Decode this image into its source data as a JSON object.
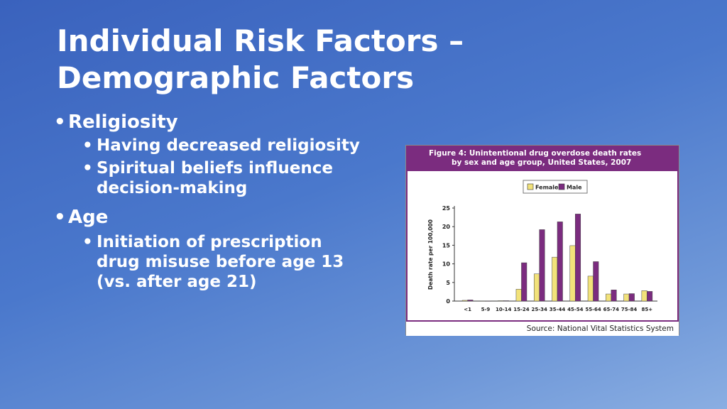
{
  "slide": {
    "title_line1": "Individual Risk Factors –",
    "title_line2": "Demographic Factors",
    "bullets": [
      {
        "label": "Religiosity",
        "sub": [
          "Having decreased religiosity",
          "Spiritual beliefs influence",
          "decision-making"
        ]
      },
      {
        "label": "Age",
        "sub": [
          "Initiation of prescription",
          "drug misuse before age 13",
          "(vs. after age 21)"
        ]
      }
    ]
  },
  "chart_data": {
    "type": "bar",
    "title_line1": "Figure 4: Unintentional drug overdose death rates",
    "title_line2": "by sex and age group, United States, 2007",
    "source": "Source: National Vital Statistics System",
    "ylabel": "Death rate per 100,000",
    "ylim": [
      0,
      25
    ],
    "yticks": [
      "0",
      "5",
      "10",
      "15",
      "20",
      "25"
    ],
    "categories": [
      "<1",
      "5-9",
      "10-14",
      "15-24",
      "25-34",
      "35-44",
      "45-54",
      "55-64",
      "65-74",
      "75-84",
      "85+"
    ],
    "series": [
      {
        "name": "Female",
        "color": "#f2e27a",
        "values": [
          0.2,
          0.05,
          0.1,
          3.2,
          7.3,
          11.8,
          14.9,
          6.7,
          1.9,
          1.9,
          2.8
        ]
      },
      {
        "name": "Male",
        "color": "#7b2c7f",
        "values": [
          0.3,
          0.05,
          0.1,
          10.3,
          19.2,
          21.3,
          23.4,
          10.6,
          3.0,
          2.0,
          2.6
        ]
      }
    ],
    "legend_position": "top-center",
    "grid": false
  }
}
